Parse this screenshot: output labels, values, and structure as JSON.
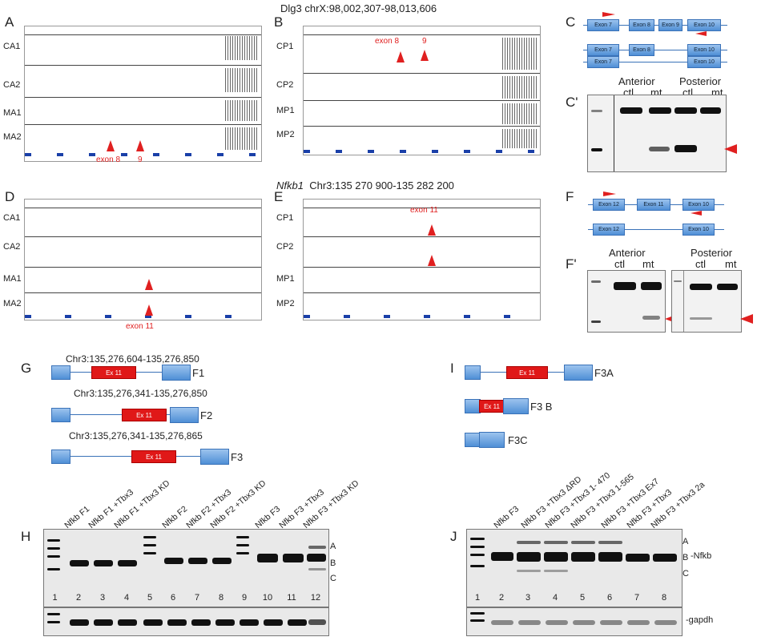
{
  "panel_letters": {
    "A": "A",
    "B": "B",
    "C": "C",
    "Cp": "C'",
    "D": "D",
    "E": "E",
    "F": "F",
    "Fp": "F'",
    "G": "G",
    "H": "H",
    "I": "I",
    "J": "J"
  },
  "dlg3_title": "Dlg3  chrX:98,002,307-98,013,606",
  "nfkb1_title_gene": "Nfkb1",
  "nfkb1_title_coord": "Chr3:135 270 900-135 282 200",
  "panelA_rows": [
    "CA1",
    "CA2",
    "MA1",
    "MA2"
  ],
  "panelB_rows": [
    "CP1",
    "CP2",
    "MP1",
    "MP2"
  ],
  "panelD_rows": [
    "CA1",
    "CA2",
    "MA1",
    "MA2"
  ],
  "panelE_rows": [
    "CP1",
    "CP2",
    "MP1",
    "MP2"
  ],
  "panelA_exons": {
    "e8": "exon  8",
    "e9": "9"
  },
  "panelB_exons": {
    "e8": "exon  8",
    "e9": "9"
  },
  "panelD_exon": "exon 11",
  "panelE_exon": "exon 11",
  "panelC_exons": [
    "Exon 7",
    "Exon 8",
    "Exon 9",
    "Exon 10"
  ],
  "panelC_r2": [
    "Exon 7",
    "Exon 8",
    "Exon 10"
  ],
  "panelC_r3": [
    "Exon 7",
    "Exon 10"
  ],
  "panelCp": {
    "anterior": "Anterior",
    "posterior": "Posterior",
    "ctl": "ctl",
    "mt": "mt"
  },
  "panelF_r1": [
    "Exon 12",
    "Exon 11",
    "Exon 10"
  ],
  "panelF_r2": [
    "Exon 12",
    "Exon 10"
  ],
  "panelFp": {
    "anterior": "Anterior",
    "posterior": "Posterior",
    "ctl": "ctl",
    "mt": "mt"
  },
  "panelG": {
    "c1": "Chr3:135,276,604-135,276,850",
    "c2": "Chr3:135,276,341-135,276,850",
    "c3": "Chr3:135,276,341-135,276,865",
    "ex": "Ex 11",
    "f1": "F1",
    "f2": "F2",
    "f3": "F3"
  },
  "panelI": {
    "ex": "Ex 11",
    "f3a": "F3A",
    "f3b": "F3 B",
    "f3c": "F3C"
  },
  "panelH_lanes": [
    "Nfkb F1",
    "Nfkb F1 +Tbx3",
    "Nfkb F1 +Tbx3 KD",
    "Nfkb F2",
    "Nfkb F2 +Tbx3",
    "Nfkb F2 +Tbx3 KD",
    "Nfkb F3",
    "Nfkb F3 +Tbx3",
    "Nfkb F3 +Tbx3 KD"
  ],
  "panelH_numbers": [
    "1",
    "2",
    "3",
    "4",
    "5",
    "6",
    "7",
    "8",
    "9",
    "10",
    "11",
    "12"
  ],
  "panelH_bands": {
    "a": "A",
    "b": "B",
    "c": "C"
  },
  "panelJ_lanes": [
    "Nfkb F3",
    "Nfkb F3 +Tbx3 ΔRD",
    "Nfkb F3 +Tbx3 1- 470",
    "Nfkb F3 +Tbx3 1-565",
    "Nfkb F3 +Tbx3 Ex7",
    "Nfkb F3 +Tbx3",
    "Nfkb F3 +Tbx3 2a"
  ],
  "panelJ_numbers": [
    "1",
    "2",
    "3",
    "4",
    "5",
    "6",
    "7",
    "8"
  ],
  "panelJ_bands": {
    "a": "A",
    "b": "B",
    "c": "C",
    "nfkb": "-Nfkb",
    "gapdh": "-gapdh"
  }
}
